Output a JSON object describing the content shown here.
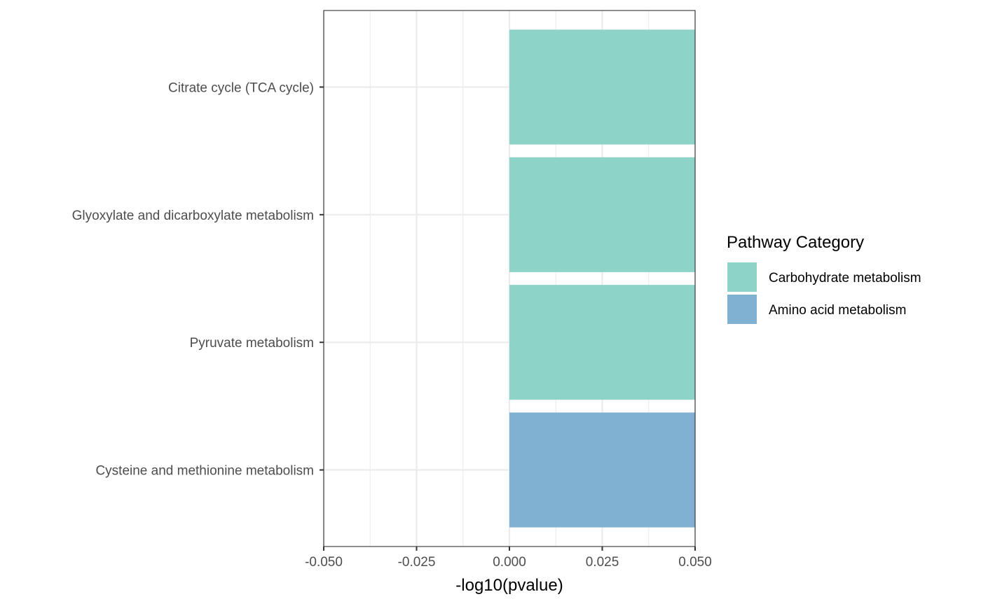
{
  "chart_data": {
    "type": "bar",
    "orientation": "horizontal",
    "categories": [
      "Citrate cycle (TCA cycle)",
      "Glyoxylate and dicarboxylate metabolism",
      "Pyruvate metabolism",
      "Cysteine and methionine metabolism"
    ],
    "values": [
      0.05,
      0.05,
      0.05,
      0.05
    ],
    "bar_categories": [
      "Carbohydrate metabolism",
      "Carbohydrate metabolism",
      "Carbohydrate metabolism",
      "Amino acid metabolism"
    ],
    "xlabel": "-log10(pvalue)",
    "ylabel": "",
    "title": "",
    "xlim": [
      -0.05,
      0.05
    ],
    "xticks": [
      -0.05,
      -0.025,
      0,
      0.025,
      0.05
    ],
    "xtick_labels": [
      "-0.050",
      "-0.025",
      "0.000",
      "0.025",
      "0.050"
    ],
    "grid": true,
    "legend": {
      "title": "Pathway Category",
      "position": "right",
      "entries": [
        {
          "label": "Carbohydrate metabolism",
          "color": "#8dd3c7"
        },
        {
          "label": "Amino acid metabolism",
          "color": "#80b1d3"
        }
      ]
    }
  }
}
